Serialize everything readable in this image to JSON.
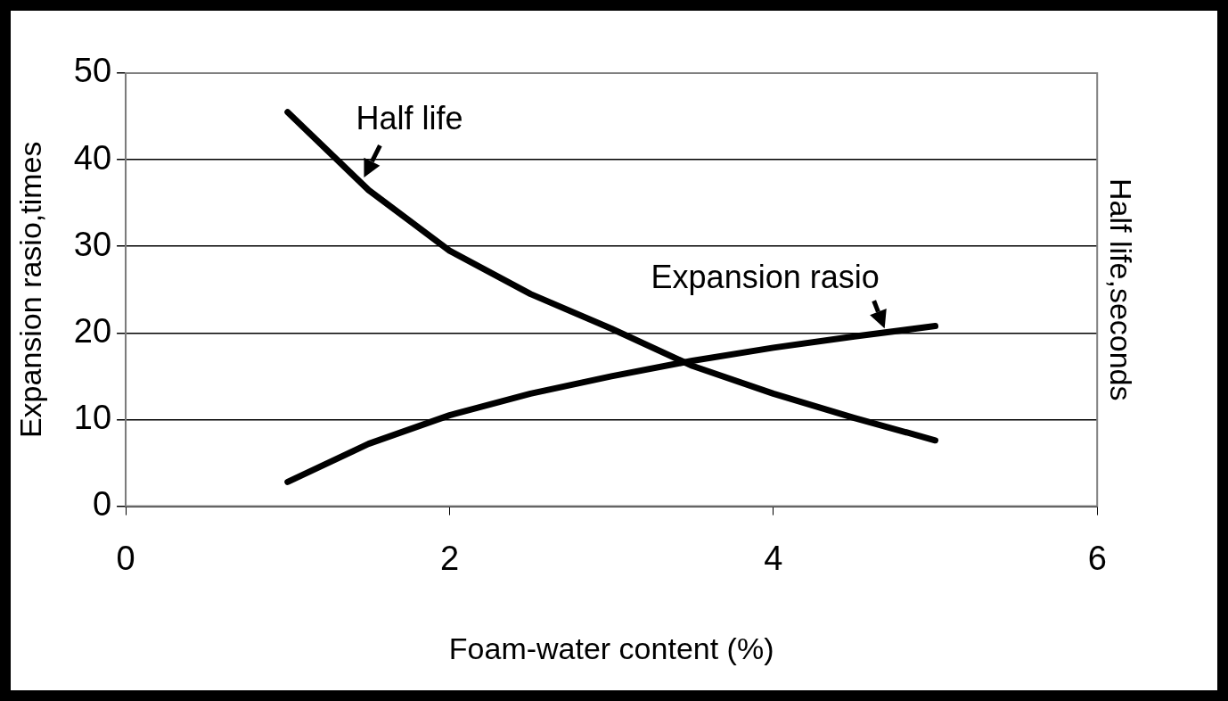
{
  "chart_data": {
    "type": "line",
    "xlabel": "Foam-water content (%)",
    "ylabel": "Expansion rasio,times",
    "y2label": "Half life,seconds",
    "series": [
      {
        "name": "Half life",
        "color": "#000000",
        "x": [
          1,
          1.5,
          2,
          2.5,
          3,
          3.5,
          4,
          4.5,
          5
        ],
        "values": [
          45.5,
          36.5,
          29.5,
          24.5,
          20.5,
          16.2,
          13,
          10.2,
          7.6
        ]
      },
      {
        "name": "Expansion rasio",
        "color": "#000000",
        "x": [
          1,
          1.5,
          2,
          2.5,
          3,
          3.5,
          4,
          4.5,
          5
        ],
        "values": [
          2.8,
          7.2,
          10.5,
          13,
          15,
          16.8,
          18.3,
          19.6,
          20.8
        ]
      }
    ],
    "xlim": [
      0,
      6
    ],
    "xticks": [
      0,
      2,
      4,
      6
    ],
    "ylim": [
      0,
      50
    ],
    "yticks": [
      0,
      10,
      20,
      30,
      40,
      50
    ],
    "grid": "y",
    "legend": false,
    "marker": "none",
    "line_style": "solid"
  }
}
